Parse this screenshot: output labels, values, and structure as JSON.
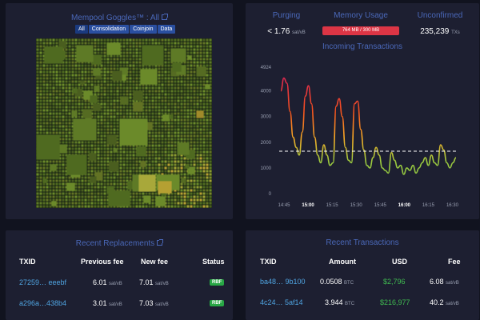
{
  "goggles": {
    "title": "Mempool Goggles™ : All",
    "filters": [
      "All",
      "Consolidation",
      "Coinjoin",
      "Data"
    ]
  },
  "stats": {
    "purging": {
      "title": "Purging",
      "value": "< 1.76",
      "unit": "sat/vB"
    },
    "memory": {
      "title": "Memory Usage",
      "value": "764 MB / 300 MB"
    },
    "unconfirmed": {
      "title": "Unconfirmed",
      "value": "235,239",
      "unit": "TXs"
    }
  },
  "chart_data": {
    "type": "line",
    "title": "Incoming Transactions",
    "ylim": [
      0,
      4924
    ],
    "yticks": [
      "4924",
      "4000",
      "3000",
      "2000",
      "1000",
      "0"
    ],
    "xticks": [
      "14:45",
      "15:00",
      "15:15",
      "15:30",
      "15:45",
      "16:00",
      "16:15",
      "16:30"
    ],
    "x": [
      "14:41",
      "14:43",
      "14:45",
      "14:47",
      "14:49",
      "14:51",
      "14:53",
      "14:55",
      "14:57",
      "14:59",
      "15:01",
      "15:03",
      "15:05",
      "15:07",
      "15:09",
      "15:11",
      "15:13",
      "15:15",
      "15:17",
      "15:19",
      "15:21",
      "15:23",
      "15:25",
      "15:27",
      "15:29",
      "15:31",
      "15:33",
      "15:35",
      "15:37",
      "15:39",
      "15:41",
      "15:43",
      "15:45",
      "15:47",
      "15:49",
      "15:51",
      "15:53",
      "15:55",
      "15:57",
      "15:59",
      "16:01",
      "16:03",
      "16:05",
      "16:07",
      "16:09",
      "16:11",
      "16:13",
      "16:15",
      "16:17",
      "16:19",
      "16:21",
      "16:23",
      "16:25",
      "16:27",
      "16:29",
      "16:31",
      "16:33",
      "16:35"
    ],
    "values": [
      4000,
      4500,
      4300,
      3200,
      2200,
      1800,
      1500,
      2400,
      3800,
      4200,
      3500,
      2200,
      1500,
      1200,
      1900,
      1500,
      1100,
      1200,
      3400,
      3700,
      3000,
      1800,
      1300,
      1200,
      3500,
      3600,
      2500,
      1700,
      1100,
      1000,
      1400,
      1800,
      1500,
      1000,
      900,
      800,
      1600,
      1300,
      1000,
      1100,
      750,
      1000,
      900,
      1100,
      800,
      1000,
      1200,
      1400,
      1100,
      1500,
      1200,
      1100,
      1900,
      1700,
      1200,
      1000,
      1200,
      1400
    ],
    "threshold": 1650
  },
  "replacements": {
    "title": "Recent Replacements",
    "headers": {
      "txid": "TXID",
      "prev": "Previous fee",
      "new": "New fee",
      "status": "Status"
    },
    "rows": [
      {
        "txid": "27259… eeebf",
        "prev": "6.01",
        "prev_unit": "sat/vB",
        "new": "7.01",
        "new_unit": "sat/vB",
        "status": "RBF"
      },
      {
        "txid": "a296a…438b4",
        "prev": "3.01",
        "prev_unit": "sat/vB",
        "new": "7.03",
        "new_unit": "sat/vB",
        "status": "RBF"
      }
    ]
  },
  "transactions": {
    "title": "Recent Transactions",
    "headers": {
      "txid": "TXID",
      "amount": "Amount",
      "usd": "USD",
      "fee": "Fee"
    },
    "rows": [
      {
        "txid": "ba48… 9b100",
        "amount": "0.0508",
        "amount_unit": "BTC",
        "usd": "$2,796",
        "fee": "6.08",
        "fee_unit": "sat/vB"
      },
      {
        "txid": "4c24… 5af14",
        "amount": "3.944",
        "amount_unit": "BTC",
        "usd": "$216,977",
        "fee": "40.2",
        "fee_unit": "sat/vB"
      }
    ]
  }
}
